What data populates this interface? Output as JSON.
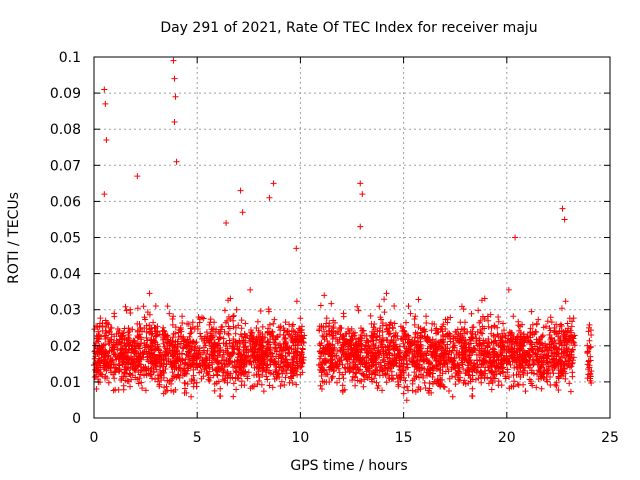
{
  "chart_data": {
    "type": "scatter",
    "title": "Day 291 of 2021, Rate Of TEC Index for receiver maju",
    "xlabel": "GPS time / hours",
    "ylabel": "ROTI / TECUs",
    "xlim": [
      0,
      25
    ],
    "ylim": [
      0,
      0.1
    ],
    "xticks": [
      0,
      5,
      10,
      15,
      20,
      25
    ],
    "xtick_labels": [
      "0",
      "5",
      "10",
      "15",
      "20",
      "25"
    ],
    "yticks": [
      0,
      0.01,
      0.02,
      0.03,
      0.04,
      0.05,
      0.06,
      0.07,
      0.08,
      0.09,
      0.1
    ],
    "ytick_labels": [
      "0",
      "0.01",
      "0.02",
      "0.03",
      "0.04",
      "0.05",
      "0.06",
      "0.07",
      "0.08",
      "0.09",
      "0.1"
    ],
    "grid": true,
    "marker": "+",
    "colors": {
      "series": "#ff0000",
      "grid": "#a0a0a0",
      "axis": "#000000"
    },
    "series": [
      {
        "name": "ROTI",
        "data_gaps_hours": [
          [
            10.2,
            10.9
          ],
          [
            23.3,
            23.9
          ]
        ],
        "x": [
          0.1,
          0.2,
          0.3,
          0.4,
          0.5,
          0.55,
          0.6,
          0.7,
          0.8,
          0.9,
          1.0,
          1.2,
          1.4,
          1.6,
          1.8,
          2.0,
          2.2,
          2.4,
          2.6,
          2.8,
          3.0,
          3.2,
          3.4,
          3.6,
          3.8,
          3.9,
          4.0,
          4.1,
          4.2,
          4.4,
          4.6,
          4.8,
          5.0,
          5.2,
          5.4,
          5.6,
          5.8,
          6.0,
          6.2,
          6.4,
          6.6,
          6.8,
          7.0,
          7.2,
          7.4,
          7.6,
          7.8,
          8.0,
          8.2,
          8.4,
          8.6,
          8.8,
          9.0,
          9.2,
          9.4,
          9.6,
          9.8,
          10.0,
          11.0,
          11.2,
          11.4,
          11.6,
          11.8,
          12.0,
          12.2,
          12.4,
          12.6,
          12.8,
          13.0,
          13.2,
          13.4,
          13.6,
          13.8,
          14.0,
          14.2,
          14.4,
          14.6,
          14.8,
          15.0,
          15.2,
          15.4,
          15.6,
          15.8,
          16.0,
          16.2,
          16.4,
          16.6,
          16.8,
          17.0,
          17.2,
          17.4,
          17.6,
          17.8,
          18.0,
          18.2,
          18.4,
          18.6,
          18.8,
          19.0,
          19.2,
          19.4,
          19.6,
          19.8,
          20.0,
          20.2,
          20.4,
          20.6,
          20.8,
          21.0,
          21.2,
          21.4,
          21.6,
          21.8,
          22.0,
          22.2,
          22.4,
          22.6,
          22.8,
          23.0,
          23.2,
          24.0,
          24.1,
          0.5,
          0.55,
          0.6,
          0.5,
          2.1,
          3.85,
          3.9,
          3.95,
          3.9,
          4.0,
          12.9,
          13.0,
          12.9,
          8.7,
          8.5,
          7.1,
          7.2,
          22.7,
          22.8,
          6.4,
          20.4,
          9.8
        ],
        "y": [
          0.015,
          0.013,
          0.014,
          0.012,
          0.016,
          0.018,
          0.015,
          0.017,
          0.014,
          0.016,
          0.013,
          0.015,
          0.017,
          0.014,
          0.016,
          0.018,
          0.015,
          0.014,
          0.017,
          0.016,
          0.015,
          0.013,
          0.016,
          0.018,
          0.017,
          0.015,
          0.016,
          0.014,
          0.013,
          0.015,
          0.017,
          0.016,
          0.014,
          0.013,
          0.015,
          0.016,
          0.017,
          0.018,
          0.016,
          0.015,
          0.017,
          0.019,
          0.018,
          0.016,
          0.015,
          0.017,
          0.018,
          0.016,
          0.015,
          0.014,
          0.016,
          0.015,
          0.014,
          0.013,
          0.015,
          0.014,
          0.013,
          0.012,
          0.015,
          0.016,
          0.014,
          0.013,
          0.015,
          0.016,
          0.017,
          0.015,
          0.014,
          0.016,
          0.015,
          0.014,
          0.016,
          0.017,
          0.015,
          0.016,
          0.014,
          0.015,
          0.016,
          0.017,
          0.015,
          0.014,
          0.016,
          0.015,
          0.017,
          0.016,
          0.015,
          0.014,
          0.016,
          0.017,
          0.015,
          0.016,
          0.014,
          0.015,
          0.016,
          0.017,
          0.016,
          0.015,
          0.014,
          0.016,
          0.017,
          0.015,
          0.016,
          0.017,
          0.018,
          0.016,
          0.017,
          0.018,
          0.016,
          0.017,
          0.018,
          0.019,
          0.018,
          0.017,
          0.016,
          0.017,
          0.018,
          0.017,
          0.016,
          0.015,
          0.017,
          0.016,
          0.014,
          0.013,
          0.091,
          0.087,
          0.077,
          0.062,
          0.067,
          0.099,
          0.094,
          0.089,
          0.082,
          0.071,
          0.065,
          0.062,
          0.053,
          0.065,
          0.061,
          0.063,
          0.057,
          0.058,
          0.055,
          0.054,
          0.05,
          0.047
        ]
      }
    ],
    "cloud_model": {
      "description": "dense band of points between about 0.004 and 0.03 TECU/s with sparse spikes above",
      "segments_hours": [
        [
          0.0,
          10.2
        ],
        [
          10.9,
          23.3
        ],
        [
          23.9,
          24.1
        ]
      ],
      "band_low": 0.004,
      "band_high": 0.03
    }
  }
}
